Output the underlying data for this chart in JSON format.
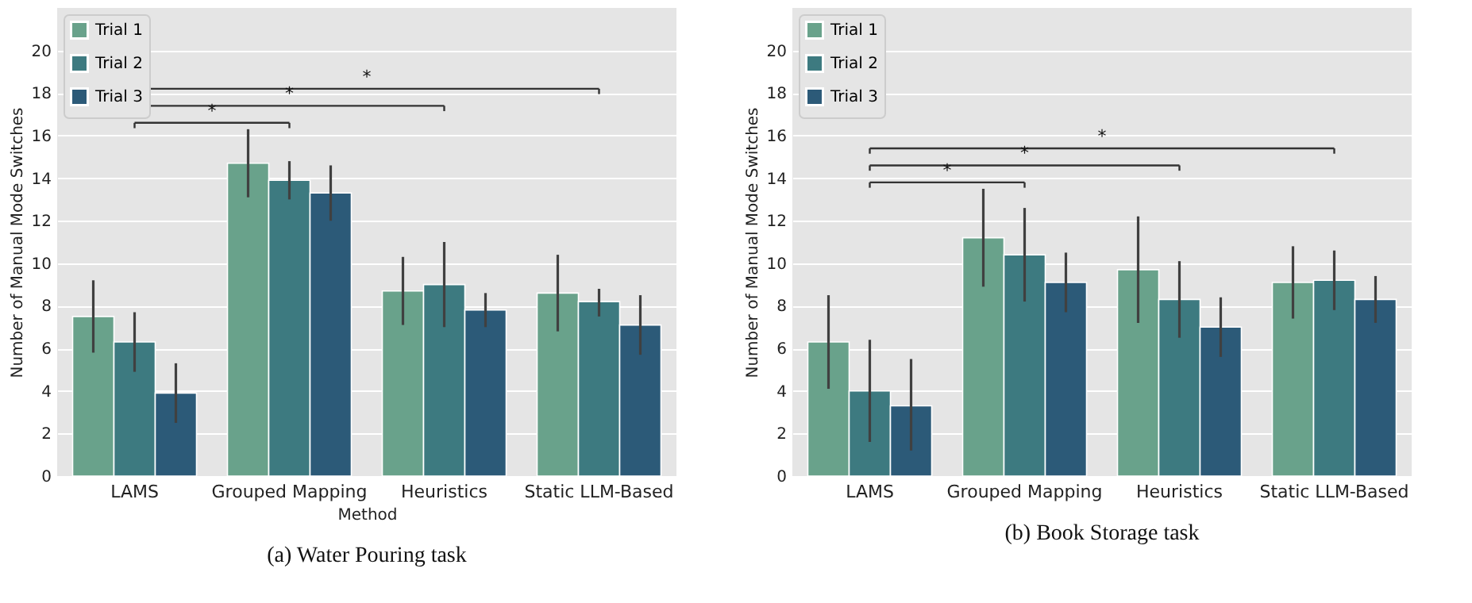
{
  "chart_data": [
    {
      "type": "bar",
      "title": "(a) Water Pouring task",
      "xlabel": "Method",
      "ylabel": "Number of Manual Mode Switches",
      "categories": [
        "LAMS",
        "Grouped Mapping",
        "Heuristics",
        "Static LLM-Based"
      ],
      "ylim": [
        0,
        22
      ],
      "yticks": [
        0,
        2,
        4,
        6,
        8,
        10,
        12,
        14,
        16,
        18,
        20
      ],
      "grid": "y",
      "legend": "top left",
      "series": [
        {
          "name": "Trial 1",
          "color": "#69a28b",
          "values": [
            7.5,
            14.7,
            8.7,
            8.6
          ],
          "errors": [
            [
              5.8,
              9.2
            ],
            [
              13.1,
              16.3
            ],
            [
              7.1,
              10.3
            ],
            [
              6.8,
              10.4
            ]
          ]
        },
        {
          "name": "Trial 2",
          "color": "#3d7a80",
          "values": [
            6.3,
            13.9,
            9.0,
            8.2
          ],
          "errors": [
            [
              4.9,
              7.7
            ],
            [
              13.0,
              14.8
            ],
            [
              7.0,
              11.0
            ],
            [
              7.5,
              8.8
            ]
          ]
        },
        {
          "name": "Trial 3",
          "color": "#2c5a78",
          "values": [
            3.9,
            13.3,
            7.8,
            7.1
          ],
          "errors": [
            [
              2.5,
              5.3
            ],
            [
              12.0,
              14.6
            ],
            [
              7.0,
              8.6
            ],
            [
              5.7,
              8.5
            ]
          ]
        }
      ],
      "annotations": [
        "*",
        "*",
        "*"
      ]
    },
    {
      "type": "bar",
      "title": "(b) Book Storage task",
      "ylabel": "Number of Manual Mode Switches",
      "categories": [
        "LAMS",
        "Grouped Mapping",
        "Heuristics",
        "Static LLM-Based"
      ],
      "ylim": [
        0,
        22
      ],
      "yticks": [
        0,
        2,
        4,
        6,
        8,
        10,
        12,
        14,
        16,
        18,
        20
      ],
      "grid": "y",
      "legend": "top left",
      "series": [
        {
          "name": "Trial 1",
          "color": "#69a28b",
          "values": [
            6.3,
            11.2,
            9.7,
            9.1
          ],
          "errors": [
            [
              4.1,
              8.5
            ],
            [
              8.9,
              13.5
            ],
            [
              7.2,
              12.2
            ],
            [
              7.4,
              10.8
            ]
          ]
        },
        {
          "name": "Trial 2",
          "color": "#3d7a80",
          "values": [
            4.0,
            10.4,
            8.3,
            9.2
          ],
          "errors": [
            [
              1.6,
              6.4
            ],
            [
              8.2,
              12.6
            ],
            [
              6.5,
              10.1
            ],
            [
              7.8,
              10.6
            ]
          ]
        },
        {
          "name": "Trial 3",
          "color": "#2c5a78",
          "values": [
            3.3,
            9.1,
            7.0,
            8.3
          ],
          "errors": [
            [
              1.2,
              5.5
            ],
            [
              7.7,
              10.5
            ],
            [
              5.6,
              8.4
            ],
            [
              7.2,
              9.4
            ]
          ]
        }
      ],
      "annotations": [
        "*",
        "*",
        "*"
      ]
    }
  ]
}
